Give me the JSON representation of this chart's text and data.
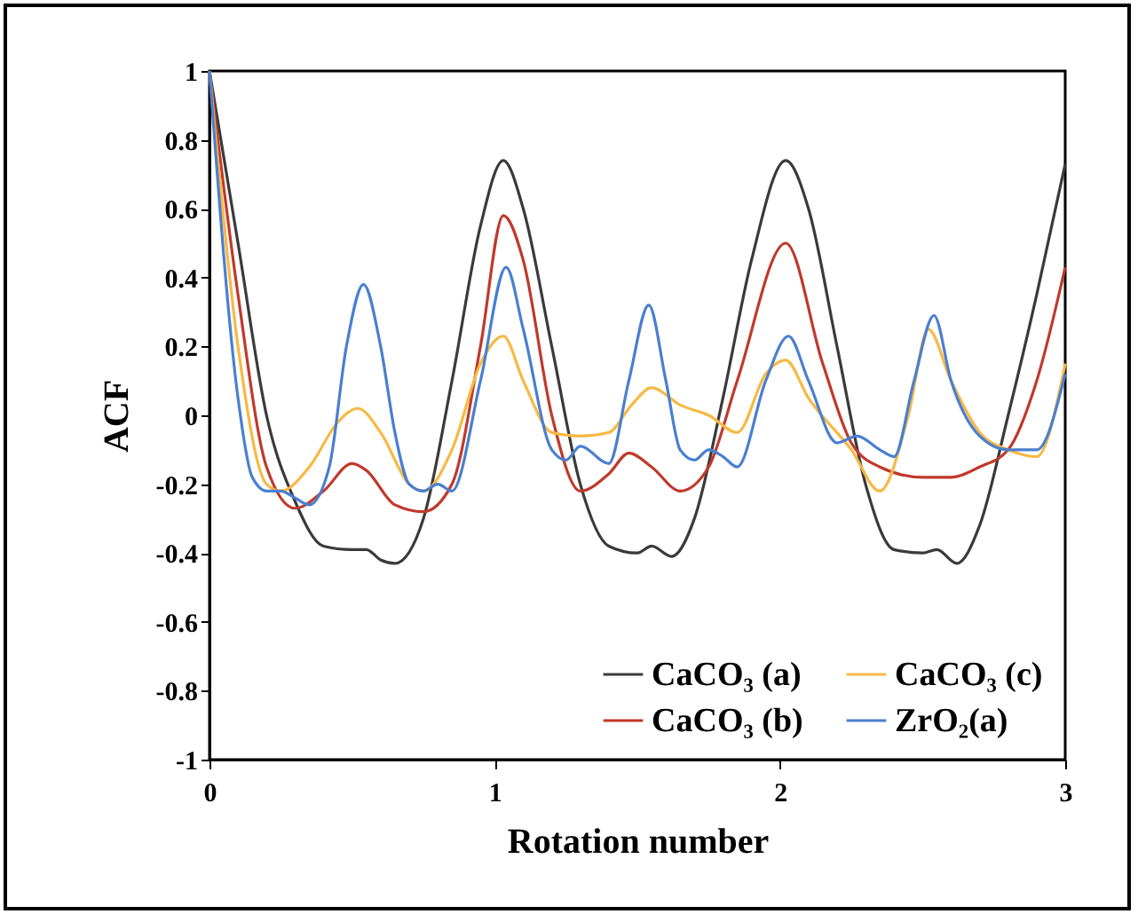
{
  "chart_data": {
    "type": "line",
    "xlabel": "Rotation number",
    "ylabel": "ACF",
    "xlim": [
      0,
      3
    ],
    "xticks": [
      0,
      1,
      2,
      3
    ],
    "ylim": [
      -1,
      1
    ],
    "yticks": [
      -1,
      -0.8,
      -0.6,
      -0.4,
      -0.2,
      0,
      0.2,
      0.4,
      0.6,
      0.8,
      1
    ],
    "grid": false,
    "legend": "bottom right",
    "marker": "none",
    "line_style": "solid",
    "series": [
      {
        "name": "CaCO₃ (a)",
        "color": "#3a3a3a",
        "x": [
          0,
          0.1,
          0.2,
          0.3,
          0.4,
          0.5,
          0.55,
          0.6,
          0.65,
          0.75,
          0.85,
          0.95,
          1.03,
          1.1,
          1.2,
          1.3,
          1.4,
          1.5,
          1.55,
          1.62,
          1.7,
          1.8,
          1.9,
          2.02,
          2.1,
          2.2,
          2.3,
          2.4,
          2.5,
          2.55,
          2.62,
          2.7,
          2.8,
          2.9,
          3.0
        ],
        "values": [
          1,
          0.5,
          0.0,
          -0.25,
          -0.38,
          -0.39,
          -0.39,
          -0.42,
          -0.43,
          -0.3,
          0.1,
          0.55,
          0.74,
          0.6,
          0.2,
          -0.2,
          -0.38,
          -0.4,
          -0.38,
          -0.41,
          -0.3,
          0.05,
          0.45,
          0.74,
          0.6,
          0.2,
          -0.2,
          -0.39,
          -0.4,
          -0.39,
          -0.43,
          -0.32,
          0.0,
          0.35,
          0.73
        ]
      },
      {
        "name": "CaCO₃ (b)",
        "color": "#c0392b",
        "x": [
          0,
          0.1,
          0.2,
          0.3,
          0.4,
          0.5,
          0.55,
          0.65,
          0.75,
          0.85,
          0.95,
          1.03,
          1.1,
          1.2,
          1.3,
          1.4,
          1.47,
          1.55,
          1.65,
          1.75,
          1.85,
          2.02,
          2.15,
          2.25,
          2.35,
          2.5,
          2.6,
          2.7,
          2.8,
          2.9,
          3.0
        ],
        "values": [
          1,
          0.35,
          -0.15,
          -0.27,
          -0.22,
          -0.14,
          -0.16,
          -0.26,
          -0.28,
          -0.2,
          0.2,
          0.58,
          0.45,
          0.0,
          -0.22,
          -0.17,
          -0.11,
          -0.15,
          -0.22,
          -0.15,
          0.1,
          0.5,
          0.15,
          -0.08,
          -0.15,
          -0.18,
          -0.18,
          -0.15,
          -0.1,
          0.1,
          0.43
        ]
      },
      {
        "name": "CaCO₃ (c)",
        "color": "#f7b944",
        "x": [
          0,
          0.1,
          0.2,
          0.25,
          0.35,
          0.45,
          0.52,
          0.6,
          0.7,
          0.75,
          0.85,
          0.95,
          1.03,
          1.1,
          1.2,
          1.3,
          1.4,
          1.48,
          1.55,
          1.65,
          1.75,
          1.85,
          1.95,
          2.02,
          2.1,
          2.25,
          2.35,
          2.45,
          2.52,
          2.6,
          2.7,
          2.8,
          2.9,
          3.0
        ],
        "values": [
          1,
          0.2,
          -0.2,
          -0.22,
          -0.15,
          -0.02,
          0.02,
          -0.05,
          -0.2,
          -0.22,
          -0.1,
          0.15,
          0.23,
          0.1,
          -0.05,
          -0.06,
          -0.05,
          0.03,
          0.08,
          0.03,
          0.0,
          -0.05,
          0.12,
          0.16,
          0.05,
          -0.1,
          -0.22,
          0.0,
          0.25,
          0.1,
          -0.05,
          -0.1,
          -0.12,
          0.15
        ]
      },
      {
        "name": "ZrO₂(a)",
        "color": "#4a7fd0",
        "x": [
          0,
          0.1,
          0.15,
          0.2,
          0.25,
          0.3,
          0.35,
          0.42,
          0.48,
          0.54,
          0.6,
          0.65,
          0.7,
          0.75,
          0.8,
          0.85,
          0.95,
          1.04,
          1.1,
          1.2,
          1.25,
          1.3,
          1.4,
          1.47,
          1.54,
          1.6,
          1.65,
          1.7,
          1.75,
          1.8,
          1.85,
          1.95,
          2.03,
          2.1,
          2.2,
          2.27,
          2.35,
          2.4,
          2.47,
          2.54,
          2.6,
          2.7,
          2.8,
          2.9,
          3.0
        ],
        "values": [
          1,
          0.05,
          -0.18,
          -0.22,
          -0.22,
          -0.24,
          -0.26,
          -0.15,
          0.2,
          0.38,
          0.2,
          -0.05,
          -0.2,
          -0.22,
          -0.2,
          -0.22,
          0.1,
          0.43,
          0.25,
          -0.1,
          -0.13,
          -0.09,
          -0.14,
          0.1,
          0.32,
          0.1,
          -0.1,
          -0.13,
          -0.1,
          -0.12,
          -0.15,
          0.1,
          0.23,
          0.1,
          -0.08,
          -0.06,
          -0.1,
          -0.12,
          0.1,
          0.29,
          0.1,
          -0.06,
          -0.1,
          -0.1,
          0.12
        ]
      }
    ]
  }
}
